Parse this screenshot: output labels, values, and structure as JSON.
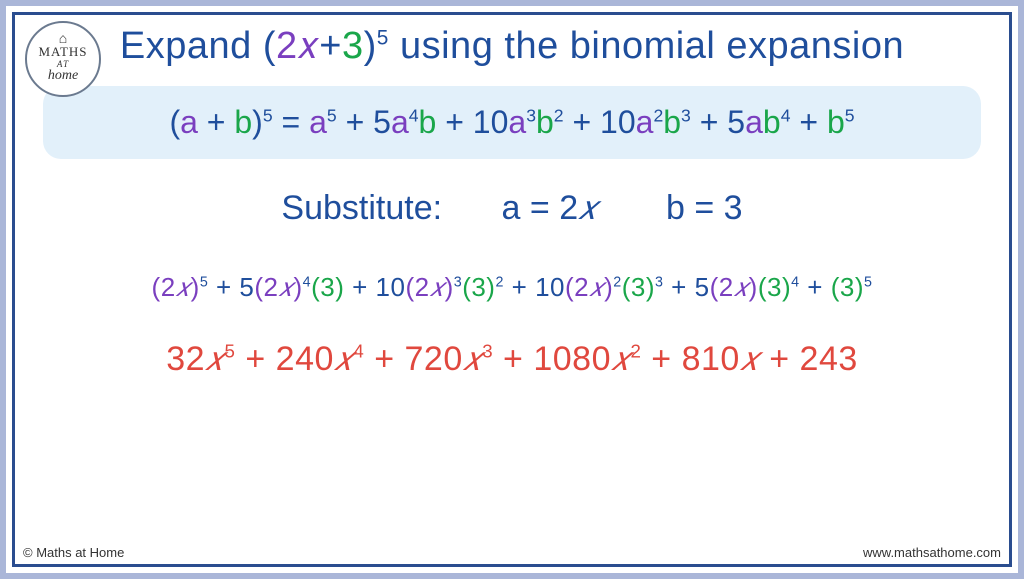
{
  "colors": {
    "border_outer": "#aab6d8",
    "border_inner": "#2a4d8f",
    "title": "#1f4e9c",
    "a_color": "#7a3fbf",
    "b_color": "#1aa64a",
    "box_bg": "#e2f0fa",
    "result": "#e0483e"
  },
  "logo": {
    "line1": "MATHS",
    "line2": "AT",
    "line3": "home"
  },
  "title": {
    "t1": "Expand (",
    "a_part": "2𝑥",
    "t2": "+",
    "b_part": "3",
    "t3": ")",
    "exp": "5",
    "t4": " using the binomial expansion"
  },
  "formula": {
    "lhs_open": "(",
    "a": "a",
    "plus": " + ",
    "b": "b",
    "close_exp": ")",
    "exp": "5",
    "eq": "  =  ",
    "terms": [
      {
        "coef": "",
        "a": "a",
        "aexp": "5",
        "b": "",
        "bexp": ""
      },
      {
        "coef": "5",
        "a": "a",
        "aexp": "4",
        "b": "b",
        "bexp": ""
      },
      {
        "coef": "10",
        "a": "a",
        "aexp": "3",
        "b": "b",
        "bexp": "2"
      },
      {
        "coef": "10",
        "a": "a",
        "aexp": "2",
        "b": "b",
        "bexp": "3"
      },
      {
        "coef": "5",
        "a": "a",
        "aexp": "",
        "b": "b",
        "bexp": "4"
      },
      {
        "coef": "",
        "a": "",
        "aexp": "",
        "b": "b",
        "bexp": "5"
      }
    ],
    "join": " + "
  },
  "subst": {
    "label": "Substitute:",
    "a_lhs": "a = ",
    "a_val": "2",
    "a_var": "𝑥",
    "b_lhs": "b = ",
    "b_val": "3"
  },
  "expanded": {
    "terms": [
      {
        "coef": "",
        "a_open": "(",
        "a_num": "2",
        "a_var": "𝑥",
        "a_close": ")",
        "aexp": "5",
        "b_open": "",
        "b_val": "",
        "b_close": "",
        "bexp": ""
      },
      {
        "coef": "5",
        "a_open": "(",
        "a_num": "2",
        "a_var": "𝑥",
        "a_close": ")",
        "aexp": "4",
        "b_open": "(",
        "b_val": "3",
        "b_close": ")",
        "bexp": ""
      },
      {
        "coef": "10",
        "a_open": "(",
        "a_num": "2",
        "a_var": "𝑥",
        "a_close": ")",
        "aexp": "3",
        "b_open": "(",
        "b_val": "3",
        "b_close": ")",
        "bexp": "2"
      },
      {
        "coef": "10",
        "a_open": "(",
        "a_num": "2",
        "a_var": "𝑥",
        "a_close": ")",
        "aexp": "2",
        "b_open": "(",
        "b_val": "3",
        "b_close": ")",
        "bexp": "3"
      },
      {
        "coef": "5",
        "a_open": "(",
        "a_num": "2",
        "a_var": "𝑥",
        "a_close": ")",
        "aexp": "",
        "b_open": "(",
        "b_val": "3",
        "b_close": ")",
        "bexp": "4"
      },
      {
        "coef": "",
        "a_open": "",
        "a_num": "",
        "a_var": "",
        "a_close": "",
        "aexp": "",
        "b_open": "(",
        "b_val": "3",
        "b_close": ")",
        "bexp": "5"
      }
    ],
    "join": " + "
  },
  "result": {
    "terms": [
      {
        "coef": "32",
        "var": "𝑥",
        "exp": "5"
      },
      {
        "coef": "240",
        "var": "𝑥",
        "exp": "4"
      },
      {
        "coef": "720",
        "var": "𝑥",
        "exp": "3"
      },
      {
        "coef": "1080",
        "var": "𝑥",
        "exp": "2"
      },
      {
        "coef": "810",
        "var": "𝑥",
        "exp": ""
      },
      {
        "coef": "243",
        "var": "",
        "exp": ""
      }
    ],
    "join": " + "
  },
  "footer": {
    "left": "© Maths at Home",
    "right": "www.mathsathome.com"
  }
}
